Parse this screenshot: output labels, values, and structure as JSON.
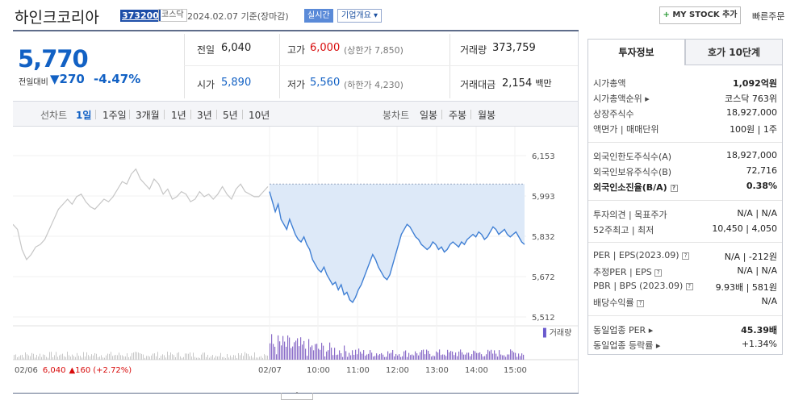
{
  "header": {
    "company_name": "하인크코리아",
    "code": "373200",
    "market": "코스닥",
    "date": "2024.02.07 기준(장마감)",
    "realtime_label": "실시간",
    "company_info_label": "기업개요",
    "mystock_label": "MY STOCK 추가",
    "quick_order_label": "빠른주문"
  },
  "price": {
    "current": "5,770",
    "diff_label": "전일대비",
    "diff_value": "270",
    "diff_pct": "-4.47%"
  },
  "stats": {
    "prev_close_label": "전일",
    "prev_close": "6,040",
    "high_label": "고가",
    "high": "6,000",
    "upper_limit": "(상한가 7,850)",
    "volume_label": "거래량",
    "volume": "373,759",
    "open_label": "시가",
    "open": "5,890",
    "low_label": "저가",
    "low": "5,560",
    "lower_limit": "(하한가 4,230)",
    "amount_label": "거래대금",
    "amount": "2,154",
    "amount_unit": "백만"
  },
  "periodbar": {
    "line_label": "선차트",
    "periods": [
      "1일",
      "1주일",
      "3개월",
      "1년",
      "3년",
      "5년",
      "10년"
    ],
    "active": "1일",
    "candle_label": "봉차트",
    "candle_periods": [
      "일봉",
      "주봉",
      "월봉"
    ]
  },
  "chart_data": {
    "type": "line",
    "y_ticks": [
      "6,153",
      "5,993",
      "5,832",
      "5,672",
      "5,512"
    ],
    "ylim": [
      5512,
      6153
    ],
    "x_ticks": [
      "02/06",
      "02/07",
      "10:00",
      "11:00",
      "12:00",
      "13:00",
      "14:00",
      "15:00"
    ],
    "volume_label": "거래량",
    "prev_day_label": "02/06",
    "prev_day_close": "6,040",
    "prev_day_change": "▲160",
    "prev_day_change_pct": "(+2.72%)",
    "prev_close_ref": 6040,
    "series": [
      {
        "values": [
          5880,
          5860,
          5780,
          5740,
          5760,
          5790,
          5800,
          5820,
          5860,
          5900,
          5940,
          5960,
          5980,
          5960,
          5990,
          6000,
          5970,
          5950,
          5940,
          5960,
          5980,
          5970,
          5990,
          6020,
          6050,
          6040,
          6080,
          6100,
          6060,
          6040,
          6020,
          6060,
          6040,
          6000,
          6020,
          5980,
          5990,
          6010,
          6000,
          5970,
          5980,
          6010,
          5990,
          6000,
          5980,
          6000,
          6030,
          6000,
          5980,
          6020,
          6040,
          6010,
          6000,
          5990,
          5990,
          6010,
          6030
        ]
      },
      {
        "values": [
          6010,
          5970,
          5930,
          5960,
          5900,
          5880,
          5860,
          5900,
          5870,
          5840,
          5820,
          5810,
          5830,
          5800,
          5780,
          5740,
          5720,
          5700,
          5690,
          5710,
          5680,
          5660,
          5640,
          5650,
          5620,
          5640,
          5600,
          5610,
          5580,
          5570,
          5590,
          5620,
          5640,
          5670,
          5700,
          5730,
          5760,
          5740,
          5710,
          5690,
          5670,
          5660,
          5680,
          5720,
          5760,
          5800,
          5840,
          5860,
          5880,
          5870,
          5850,
          5830,
          5820,
          5800,
          5790,
          5780,
          5790,
          5810,
          5800,
          5780,
          5790,
          5770,
          5780,
          5800,
          5810,
          5800,
          5790,
          5810,
          5800,
          5820,
          5830,
          5840,
          5830,
          5850,
          5840,
          5820,
          5830,
          5850,
          5870,
          5860,
          5840,
          5850,
          5860,
          5840,
          5830,
          5840,
          5850,
          5830,
          5810,
          5800
        ]
      }
    ]
  },
  "info": {
    "tab_invest": "투자정보",
    "tab_orderbook": "호가 10단계",
    "rows1": [
      {
        "label": "시가총액",
        "value": "1,092억원"
      },
      {
        "label": "시가총액순위 ▸",
        "value": "코스닥 763위"
      },
      {
        "label": "상장주식수",
        "value": "18,927,000"
      },
      {
        "label": "액면가 | 매매단위",
        "value": "100원 | 1주"
      }
    ],
    "rows2": [
      {
        "label": "외국인한도주식수(A)",
        "value": "18,927,000"
      },
      {
        "label": "외국인보유주식수(B)",
        "value": "72,716"
      },
      {
        "label": "외국인소진율(B/A)",
        "value": "0.38%"
      }
    ],
    "rows3": [
      {
        "label": "투자의견 | 목표주가",
        "value": "N/A | N/A"
      },
      {
        "label": "52주최고 | 최저",
        "value": "10,450 | 4,050"
      }
    ],
    "rows4": [
      {
        "label": "PER | EPS(2023.09)",
        "value": "N/A | -212원"
      },
      {
        "label": "추정PER | EPS",
        "value": "N/A | N/A"
      },
      {
        "label": "PBR | BPS (2023.09)",
        "value": "9.93배 | 581원"
      },
      {
        "label": "배당수익률",
        "value": "N/A"
      }
    ],
    "rows5": [
      {
        "label": "동일업종 PER ▸",
        "value": "45.39배"
      },
      {
        "label": "동일업종 등락률 ▸",
        "value": "+1.34%"
      }
    ]
  }
}
